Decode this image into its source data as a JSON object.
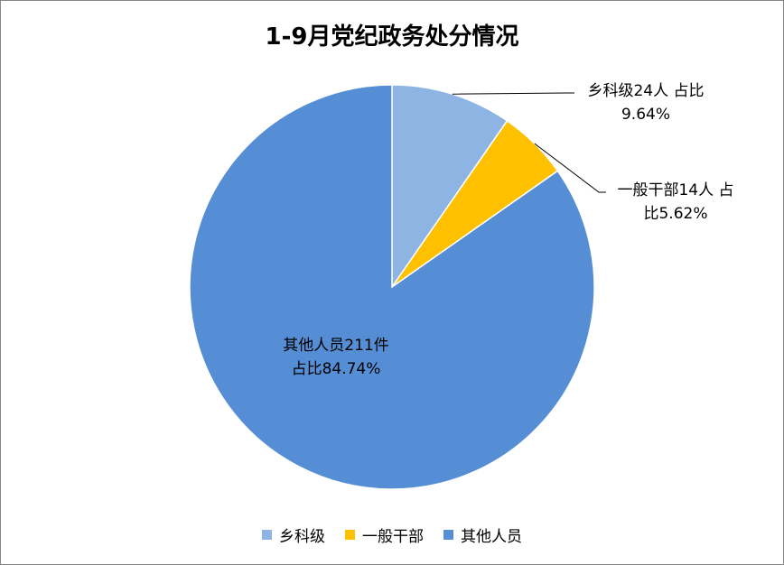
{
  "chart_data": {
    "type": "pie",
    "title": "1-9月党纪政务处分情况",
    "categories": [
      "乡科级",
      "一般干部",
      "其他人员"
    ],
    "values": [
      24,
      14,
      211
    ],
    "value_labels": [
      "乡科级24人 占比\n9.64%",
      "一般干部14人 占\n比5.62%",
      "其他人员211件\n占比84.74%"
    ],
    "colors": [
      "#8EB4E3",
      "#FFC000",
      "#558ED5"
    ],
    "legend": "bottom"
  }
}
